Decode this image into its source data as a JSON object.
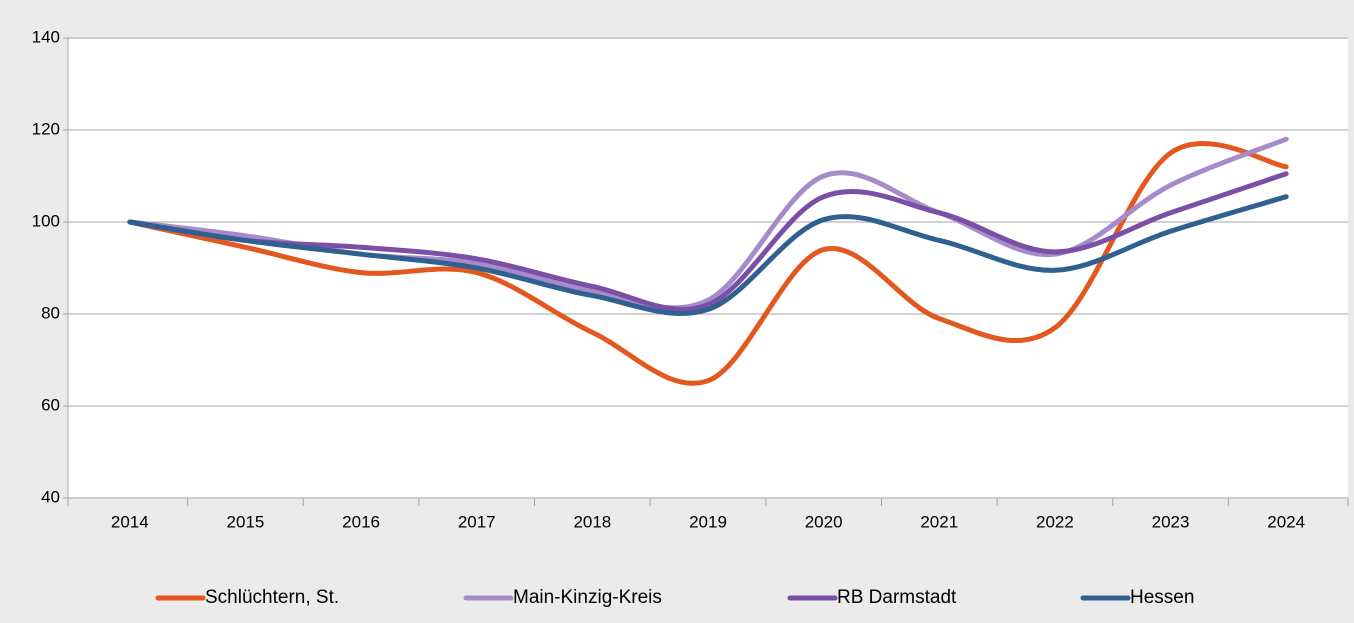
{
  "chart_data": {
    "type": "line",
    "categories": [
      "2014",
      "2015",
      "2016",
      "2017",
      "2018",
      "2019",
      "2020",
      "2021",
      "2022",
      "2023",
      "2024"
    ],
    "series": [
      {
        "name": "Schlüchtern, St.",
        "color": "#e2581f",
        "values": [
          100,
          94.5,
          89,
          89,
          76,
          65.5,
          94,
          79,
          77,
          115,
          112
        ]
      },
      {
        "name": "Main-Kinzig-Kreis",
        "color": "#a68bcb",
        "values": [
          100,
          97,
          93,
          91,
          85,
          83,
          110,
          102,
          93,
          108,
          118
        ]
      },
      {
        "name": "RB Darmstadt",
        "color": "#7a4fa6",
        "values": [
          100,
          96,
          94.5,
          92,
          86,
          82,
          105.5,
          102,
          93.5,
          102,
          110.5
        ]
      },
      {
        "name": "Hessen",
        "color": "#2f6090",
        "values": [
          100,
          96,
          93,
          90,
          84,
          81,
          100.5,
          96,
          89.5,
          98,
          105.5
        ]
      }
    ],
    "ylim": [
      40,
      140
    ],
    "yticks": [
      40,
      60,
      80,
      100,
      120,
      140
    ],
    "grid": true,
    "legend": "bottom"
  }
}
